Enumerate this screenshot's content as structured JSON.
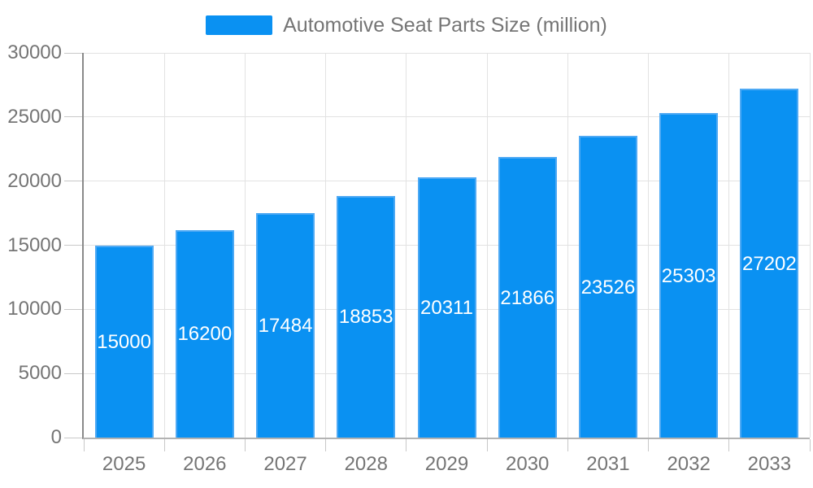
{
  "chart_data": {
    "type": "bar",
    "title": "Automotive Seat Parts Size (million)",
    "categories": [
      "2025",
      "2026",
      "2027",
      "2028",
      "2029",
      "2030",
      "2031",
      "2032",
      "2033"
    ],
    "values": [
      15000,
      16200,
      17484,
      18853,
      20311,
      21866,
      23526,
      25303,
      27202
    ],
    "xlabel": "",
    "ylabel": "",
    "ylim": [
      0,
      30000
    ],
    "y_ticks": [
      0,
      5000,
      10000,
      15000,
      20000,
      25000,
      30000
    ],
    "grid": true,
    "legend_position": "top-center",
    "value_labels": "inside-middle-white",
    "colors": {
      "bar": "#0a91f2",
      "bar_border": "#4ea9f4",
      "axis_text": "#757575",
      "value_label": "#ffffff",
      "gridline": "#e2e2e2",
      "tick": "#c8c8c8",
      "y_axis_line": "#8a8a8a",
      "x_axis_line": "#b3b3b3",
      "background": "#ffffff"
    }
  }
}
